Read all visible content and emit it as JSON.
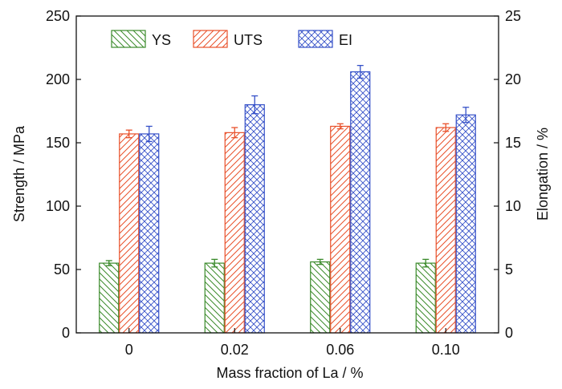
{
  "chart_data": {
    "type": "bar",
    "title": "",
    "xlabel": "Mass fraction of La / %",
    "ylabel": "Strength / MPa",
    "y2label": "Elongation / %",
    "categories": [
      "0",
      "0.02",
      "0.06",
      "0.10"
    ],
    "ylim": [
      0,
      250
    ],
    "y2lim": [
      0,
      25
    ],
    "yticks": [
      "0",
      "50",
      "100",
      "150",
      "200",
      "250"
    ],
    "y2ticks": [
      "0",
      "5",
      "10",
      "15",
      "20",
      "25"
    ],
    "grid": false,
    "legend_position": "top-left",
    "series": [
      {
        "name": "YS",
        "axis": "left",
        "color": "#3a8a2a",
        "pattern": "hatch-back",
        "values": [
          55,
          55,
          56,
          55
        ],
        "errors": [
          2,
          3,
          2,
          3
        ]
      },
      {
        "name": "UTS",
        "axis": "left",
        "color": "#e8502a",
        "pattern": "hatch-forward",
        "values": [
          157,
          158,
          163,
          162
        ],
        "errors": [
          3,
          4,
          2,
          3
        ]
      },
      {
        "name": "EI",
        "axis": "right",
        "color": "#3550c8",
        "pattern": "crosshatch",
        "values": [
          15.7,
          18.0,
          20.6,
          17.2
        ],
        "errors": [
          0.6,
          0.7,
          0.5,
          0.6
        ]
      }
    ]
  }
}
